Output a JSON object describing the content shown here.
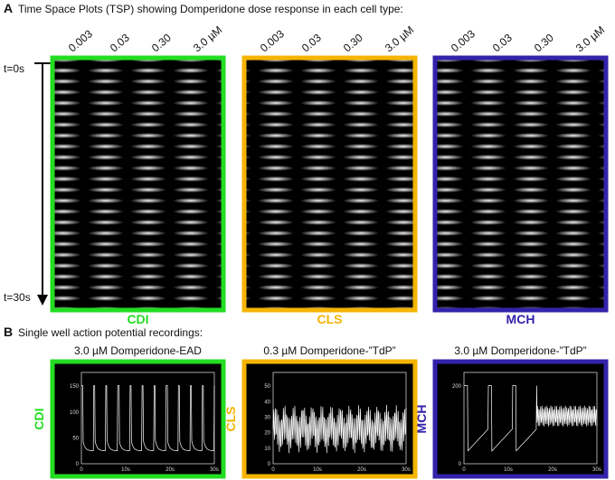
{
  "panel_a": {
    "label": "A",
    "title": "Time Space Plots (TSP) showing Domperidone dose response in each cell type:",
    "time_start": "t=0s",
    "time_end": "t=30s",
    "plots": [
      {
        "name": "CDI",
        "color": "#22dd22",
        "doses": [
          "0.003",
          "0.03",
          "0.30",
          "3.0 µM"
        ]
      },
      {
        "name": "CLS",
        "color": "#f5b400",
        "doses": [
          "0.003",
          "0.03",
          "0.30",
          "3.0 µM"
        ]
      },
      {
        "name": "MCH",
        "color": "#3322aa",
        "doses": [
          "0.003",
          "0.03",
          "0.30",
          "3.0 µM"
        ]
      }
    ]
  },
  "panel_b": {
    "label": "B",
    "title": "Single well action potential recordings:",
    "recordings": [
      {
        "name": "CDI",
        "color": "#22dd22",
        "title": "3.0 µM Domperidone-EAD",
        "yticks": [
          "0",
          "50",
          "100",
          "150"
        ],
        "xticks": [
          "0",
          "10s",
          "20s",
          "30s"
        ]
      },
      {
        "name": "CLS",
        "color": "#f5b400",
        "title": "0.3 µM Domperidone-”TdP”",
        "yticks": [
          "0",
          "10",
          "20",
          "30",
          "40",
          "50"
        ],
        "xticks": [
          "0",
          "10s",
          "20s",
          "30s"
        ]
      },
      {
        "name": "MCH",
        "color": "#3322aa",
        "title": "3.0 µM Domperidone-”TdP”",
        "yticks": [
          "0",
          "200"
        ],
        "xticks": [
          "0",
          "10s",
          "20s",
          "30s"
        ]
      }
    ]
  }
}
